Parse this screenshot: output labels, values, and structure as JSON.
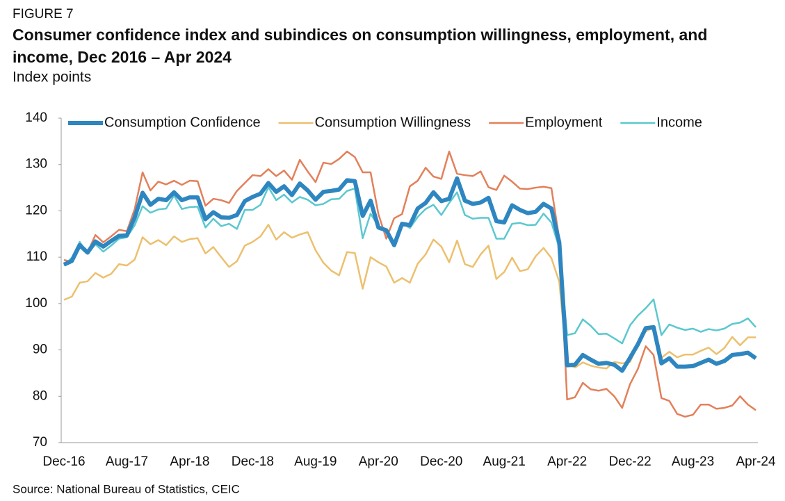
{
  "chart_data": {
    "type": "line",
    "figure_label": "FIGURE 7",
    "title": "Consumer confidence index and subindices on consumption willingness, employment, and income, Dec 2016 – Apr 2024",
    "subtitle": "Index points",
    "source": "Source: National Bureau of Statistics, CEIC",
    "categories": [
      "Dec-16",
      null,
      null,
      null,
      null,
      null,
      null,
      null,
      "Aug-17",
      null,
      null,
      null,
      null,
      null,
      null,
      null,
      "Apr-18",
      null,
      null,
      null,
      null,
      null,
      null,
      null,
      "Dec-18",
      null,
      null,
      null,
      null,
      null,
      null,
      null,
      "Aug-19",
      null,
      null,
      null,
      null,
      null,
      null,
      null,
      "Apr-20",
      null,
      null,
      null,
      null,
      null,
      null,
      null,
      "Dec-20",
      null,
      null,
      null,
      null,
      null,
      null,
      null,
      "Aug-21",
      null,
      null,
      null,
      null,
      null,
      null,
      null,
      "Apr-22",
      null,
      null,
      null,
      null,
      null,
      null,
      null,
      "Dec-22",
      null,
      null,
      null,
      null,
      null,
      null,
      null,
      "Aug-23",
      null,
      null,
      null,
      null,
      null,
      null,
      null,
      "Apr-24"
    ],
    "ylim": [
      70,
      140
    ],
    "yticks": [
      70,
      80,
      90,
      100,
      110,
      120,
      130,
      140
    ],
    "grid": false,
    "legend": "upper left",
    "series": [
      {
        "name": "Consumption Confidence",
        "color": "#2e86c1",
        "width": 6,
        "values": [
          108.4,
          109.2,
          112.6,
          111.0,
          113.4,
          112.3,
          113.5,
          114.6,
          114.7,
          118.6,
          123.9,
          121.3,
          122.6,
          122.3,
          124.0,
          122.3,
          122.9,
          122.9,
          118.2,
          119.7,
          118.6,
          118.5,
          119.1,
          122.1,
          123.0,
          123.7,
          126.0,
          124.1,
          125.3,
          123.4,
          125.9,
          124.4,
          122.4,
          124.1,
          124.3,
          124.6,
          126.6,
          126.4,
          118.9,
          122.2,
          116.4,
          115.8,
          112.6,
          117.2,
          116.9,
          120.5,
          121.7,
          124.0,
          122.1,
          122.6,
          127.0,
          122.2,
          121.5,
          121.8,
          122.8,
          117.8,
          117.5,
          121.2,
          120.2,
          119.5,
          119.8,
          121.5,
          120.5,
          113.2,
          86.7,
          86.8,
          88.9,
          87.9,
          87.0,
          87.2,
          86.8,
          85.5,
          88.3,
          91.2,
          94.7,
          94.9,
          87.1,
          88.2,
          86.4,
          86.4,
          86.5,
          87.2,
          87.9,
          87.0,
          87.6,
          88.9,
          89.1,
          89.4,
          88.2
        ]
      },
      {
        "name": "Consumption Willingness",
        "color": "#ecc06e",
        "width": 2.5,
        "values": [
          100.8,
          101.5,
          104.5,
          104.8,
          106.6,
          105.6,
          106.4,
          108.5,
          108.2,
          109.5,
          114.3,
          112.8,
          113.7,
          112.6,
          114.5,
          113.3,
          113.9,
          114.1,
          110.8,
          112.2,
          110.0,
          107.9,
          109.1,
          112.5,
          113.3,
          114.5,
          117.0,
          113.8,
          115.4,
          114.2,
          114.9,
          115.4,
          111.5,
          108.8,
          107.1,
          106.1,
          111.1,
          110.9,
          103.2,
          110.0,
          108.9,
          108.0,
          104.5,
          105.5,
          104.5,
          108.6,
          110.6,
          113.8,
          112.3,
          108.9,
          113.6,
          108.5,
          107.9,
          110.6,
          112.5,
          105.3,
          106.8,
          109.9,
          107.0,
          107.4,
          110.2,
          112.0,
          109.8,
          104.7,
          86.9,
          86.2,
          87.3,
          86.6,
          86.2,
          86.0,
          87.4,
          87.1,
          87.4,
          91.1,
          94.0,
          94.8,
          88.3,
          89.6,
          88.4,
          89.0,
          89.0,
          89.8,
          90.5,
          89.1,
          90.4,
          92.8,
          91.0,
          92.7,
          92.7
        ]
      },
      {
        "name": "Employment",
        "color": "#e3805a",
        "width": 2.5,
        "values": [
          109.4,
          109.0,
          112.4,
          111.0,
          114.8,
          113.2,
          114.5,
          115.9,
          115.6,
          120.4,
          128.3,
          124.4,
          126.3,
          125.7,
          126.5,
          125.6,
          126.5,
          126.4,
          121.1,
          122.6,
          122.3,
          121.7,
          124.3,
          126.0,
          127.7,
          127.5,
          129.0,
          127.5,
          128.7,
          126.7,
          131.0,
          128.5,
          126.2,
          130.4,
          130.1,
          131.2,
          132.8,
          131.6,
          128.3,
          128.3,
          119.3,
          114.0,
          118.4,
          119.3,
          125.3,
          126.5,
          129.3,
          127.4,
          126.9,
          132.8,
          128.0,
          127.7,
          127.5,
          128.5,
          125.1,
          124.5,
          127.6,
          126.3,
          124.8,
          124.7,
          125.0,
          125.2,
          124.9,
          114.0,
          79.3,
          79.8,
          82.9,
          81.5,
          81.2,
          81.6,
          80.0,
          77.5,
          82.6,
          85.9,
          90.8,
          88.9,
          79.6,
          79.0,
          76.2,
          75.6,
          76.0,
          78.2,
          78.2,
          77.3,
          77.5,
          78.0,
          80.0,
          78.2,
          77.0
        ]
      },
      {
        "name": "Income",
        "color": "#5bc8cf",
        "width": 2.5,
        "values": [
          108.2,
          109.9,
          113.3,
          110.8,
          112.8,
          111.2,
          112.5,
          114.0,
          114.3,
          116.9,
          121.0,
          119.6,
          120.3,
          120.5,
          123.3,
          120.4,
          120.8,
          120.9,
          116.4,
          118.3,
          116.7,
          117.2,
          116.1,
          120.2,
          120.2,
          121.3,
          125.1,
          122.3,
          123.5,
          121.8,
          123.0,
          122.4,
          121.2,
          121.5,
          122.5,
          122.6,
          124.3,
          124.8,
          114.1,
          119.4,
          116.7,
          115.8,
          113.3,
          117.3,
          116.3,
          118.7,
          120.4,
          121.3,
          119.1,
          121.7,
          124.0,
          119.1,
          118.3,
          118.5,
          118.5,
          114.0,
          114.0,
          117.2,
          117.4,
          116.9,
          117.0,
          119.4,
          117.5,
          112.0,
          93.2,
          93.6,
          96.6,
          95.2,
          93.4,
          93.5,
          92.5,
          91.4,
          95.3,
          97.4,
          99.0,
          100.9,
          93.2,
          95.5,
          94.8,
          94.3,
          94.6,
          93.9,
          94.5,
          94.2,
          94.6,
          95.6,
          95.9,
          96.8,
          94.9
        ]
      }
    ]
  }
}
